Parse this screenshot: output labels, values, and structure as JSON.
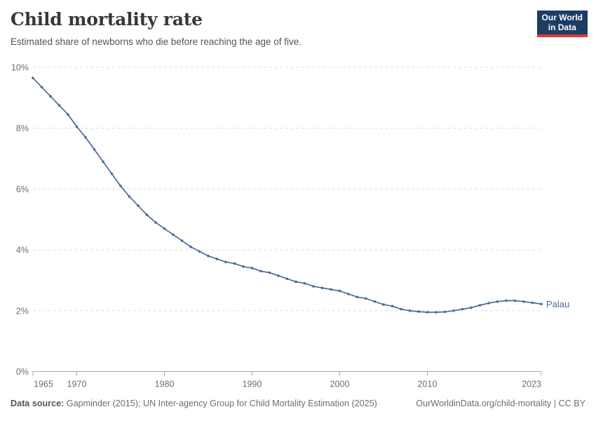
{
  "header": {
    "title": "Child mortality rate",
    "subtitle": "Estimated share of newborns who die before reaching the age of five."
  },
  "logo": {
    "line1": "Our World",
    "line2": "in Data",
    "bg_color": "#1d3d63",
    "bar_color": "#dc3a2f"
  },
  "footer": {
    "source_label": "Data source:",
    "source_text": " Gapminder (2015); UN Inter-agency Group for Child Mortality Estimation (2025)",
    "right_text": "OurWorldinData.org/child-mortality | CC BY"
  },
  "chart_data": {
    "type": "line",
    "title": "Child mortality rate",
    "unit": "%",
    "xlim": [
      1965,
      2023
    ],
    "ylim": [
      0,
      10
    ],
    "y_ticks": [
      0,
      2,
      4,
      6,
      8,
      10
    ],
    "x_ticks": [
      1965,
      1970,
      1980,
      1990,
      2000,
      2010,
      2023
    ],
    "grid": "horizontal-dashed",
    "legend_position": "end-of-line-label",
    "x": [
      1965,
      1966,
      1967,
      1968,
      1969,
      1970,
      1971,
      1972,
      1973,
      1974,
      1975,
      1976,
      1977,
      1978,
      1979,
      1980,
      1981,
      1982,
      1983,
      1984,
      1985,
      1986,
      1987,
      1988,
      1989,
      1990,
      1991,
      1992,
      1993,
      1994,
      1995,
      1996,
      1997,
      1998,
      1999,
      2000,
      2001,
      2002,
      2003,
      2004,
      2005,
      2006,
      2007,
      2008,
      2009,
      2010,
      2011,
      2012,
      2013,
      2014,
      2015,
      2016,
      2017,
      2018,
      2019,
      2020,
      2021,
      2022,
      2023
    ],
    "series": [
      {
        "name": "Palau",
        "color": "#4c6a9c",
        "values": [
          9.65,
          9.35,
          9.05,
          8.75,
          8.45,
          8.05,
          7.7,
          7.3,
          6.9,
          6.5,
          6.1,
          5.75,
          5.45,
          5.15,
          4.9,
          4.7,
          4.5,
          4.3,
          4.1,
          3.95,
          3.8,
          3.7,
          3.6,
          3.55,
          3.45,
          3.4,
          3.3,
          3.25,
          3.15,
          3.05,
          2.95,
          2.9,
          2.8,
          2.75,
          2.7,
          2.65,
          2.55,
          2.45,
          2.4,
          2.3,
          2.2,
          2.15,
          2.05,
          2.0,
          1.97,
          1.95,
          1.95,
          1.96,
          2.0,
          2.05,
          2.1,
          2.18,
          2.25,
          2.3,
          2.33,
          2.33,
          2.3,
          2.26,
          2.22
        ]
      }
    ],
    "axis_colors": {
      "grid": "#dcdcdc",
      "axis_line": "#a8a8a8",
      "tick_label": "#6e6e6e"
    }
  }
}
